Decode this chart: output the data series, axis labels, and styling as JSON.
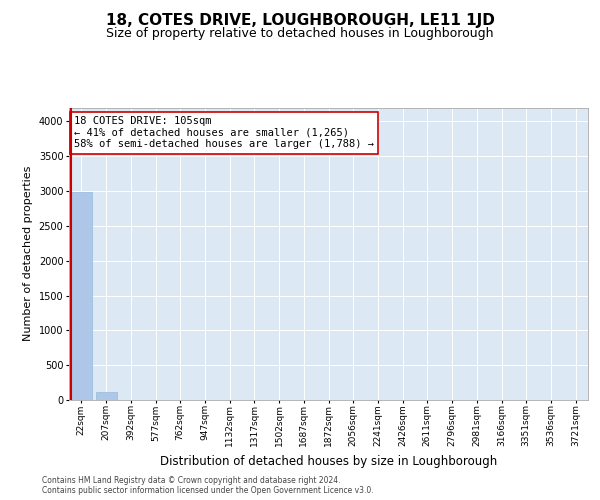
{
  "title": "18, COTES DRIVE, LOUGHBOROUGH, LE11 1JD",
  "subtitle": "Size of property relative to detached houses in Loughborough",
  "xlabel": "Distribution of detached houses by size in Loughborough",
  "ylabel": "Number of detached properties",
  "x_labels": [
    "22sqm",
    "207sqm",
    "392sqm",
    "577sqm",
    "762sqm",
    "947sqm",
    "1132sqm",
    "1317sqm",
    "1502sqm",
    "1687sqm",
    "1872sqm",
    "2056sqm",
    "2241sqm",
    "2426sqm",
    "2611sqm",
    "2796sqm",
    "2981sqm",
    "3166sqm",
    "3351sqm",
    "3536sqm",
    "3721sqm"
  ],
  "bar_values": [
    2980,
    110,
    5,
    2,
    1,
    1,
    1,
    0,
    0,
    0,
    0,
    0,
    0,
    0,
    0,
    0,
    0,
    0,
    0,
    0,
    0
  ],
  "bar_color": "#aec6e8",
  "bar_edge_color": "#8ab4d8",
  "plot_bg_color": "#dce9f5",
  "vline_color": "#cc0000",
  "annotation_text": "18 COTES DRIVE: 105sqm\n← 41% of detached houses are smaller (1,265)\n58% of semi-detached houses are larger (1,788) →",
  "annotation_box_color": "#cc0000",
  "ylim": [
    0,
    4200
  ],
  "yticks": [
    0,
    500,
    1000,
    1500,
    2000,
    2500,
    3000,
    3500,
    4000
  ],
  "footer": "Contains HM Land Registry data © Crown copyright and database right 2024.\nContains public sector information licensed under the Open Government Licence v3.0.",
  "title_fontsize": 11,
  "subtitle_fontsize": 9,
  "ylabel_fontsize": 8,
  "xlabel_fontsize": 8.5,
  "tick_fontsize": 6.5,
  "annot_fontsize": 7.5,
  "footer_fontsize": 5.5
}
